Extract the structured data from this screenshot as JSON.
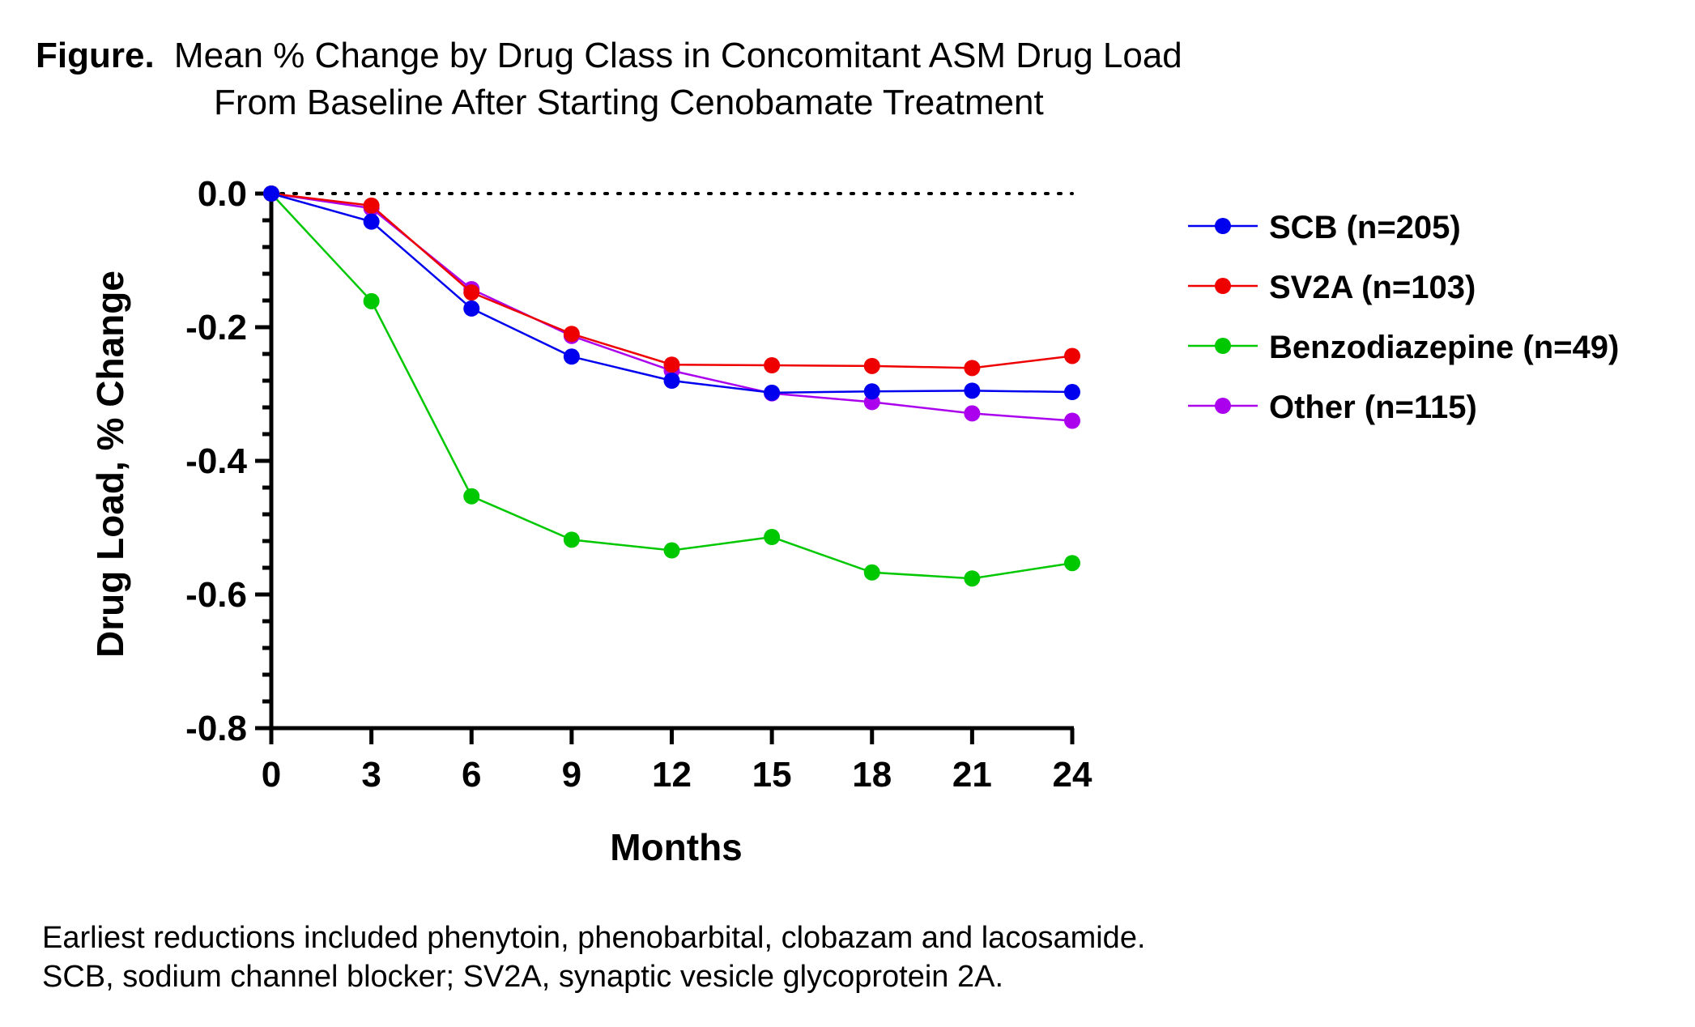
{
  "figure": {
    "title_prefix": "Figure.",
    "title_line1": "Mean % Change by Drug Class in Concomitant ASM Drug Load",
    "title_line2": "From Baseline After Starting Cenobamate Treatment",
    "footnote_line1": "Earliest reductions included phenytoin, phenobarbital, clobazam and lacosamide.",
    "footnote_line2": "SCB, sodium channel blocker; SV2A, synaptic vesicle glycoprotein 2A."
  },
  "chart_data": {
    "type": "line",
    "xlabel": "Months",
    "ylabel": "Drug Load, % Change",
    "x": [
      0,
      3,
      6,
      9,
      12,
      15,
      18,
      21,
      24
    ],
    "xticks": [
      "0",
      "3",
      "6",
      "9",
      "12",
      "15",
      "18",
      "21",
      "24"
    ],
    "yticks": [
      {
        "value": 0.0,
        "label": "0.0"
      },
      {
        "value": -0.2,
        "label": "-0.2"
      },
      {
        "value": -0.4,
        "label": "-0.4"
      },
      {
        "value": -0.6,
        "label": "-0.6"
      },
      {
        "value": -0.8,
        "label": "-0.8"
      }
    ],
    "xlim": [
      0,
      24
    ],
    "ylim": [
      -0.8,
      0.0
    ],
    "reference_line": {
      "y": 0.0,
      "style": "dotted"
    },
    "legend_position": "right",
    "series": [
      {
        "name": "SCB (n=205)",
        "color": "#0000ee",
        "values": [
          0.0,
          -0.042,
          -0.172,
          -0.244,
          -0.28,
          -0.298,
          -0.296,
          -0.295,
          -0.297
        ]
      },
      {
        "name": "SV2A (n=103)",
        "color": "#ee0000",
        "values": [
          0.0,
          -0.018,
          -0.148,
          -0.21,
          -0.256,
          -0.257,
          -0.258,
          -0.261,
          -0.243
        ]
      },
      {
        "name": "Benzodiazepine (n=49)",
        "color": "#00c800",
        "values": [
          0.0,
          -0.161,
          -0.453,
          -0.518,
          -0.534,
          -0.514,
          -0.567,
          -0.576,
          -0.553
        ]
      },
      {
        "name": "Other (n=115)",
        "color": "#aa00ee",
        "values": [
          0.0,
          -0.022,
          -0.143,
          -0.213,
          -0.265,
          -0.299,
          -0.312,
          -0.329,
          -0.34
        ]
      }
    ]
  }
}
